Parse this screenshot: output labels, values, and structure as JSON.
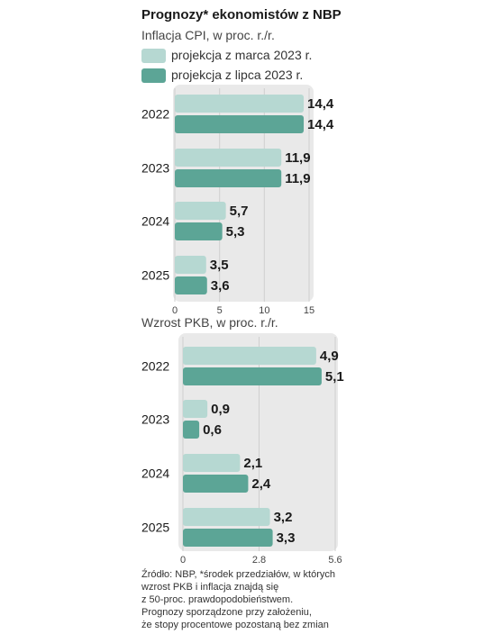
{
  "title": "Prognozy* ekonomistów z NBP",
  "legend": {
    "march": "projekcja z marca 2023 r.",
    "july": "projekcja z lipca 2023 r."
  },
  "colors": {
    "march": "#b6d8d2",
    "july": "#5ca596",
    "panel": "#e9e9e9",
    "grid": "#cfcfcf"
  },
  "source_lines": [
    "Źródło: NBP, *środek przedziałów, w których",
    "wzrost PKB i inflacja znajdą się",
    "z 50-proc. prawdopodobieństwem.",
    "Prognozy sporządzone przy założeniu,",
    "że stopy procentowe pozostaną bez zmian"
  ],
  "chart_data": [
    {
      "type": "bar",
      "title": "Inflacja CPI, w proc. r./r.",
      "categories": [
        "2022",
        "2023",
        "2024",
        "2025"
      ],
      "series": [
        {
          "name": "projekcja z marca 2023 r.",
          "values": [
            14.4,
            11.9,
            5.7,
            3.5
          ],
          "labels": [
            "14,4",
            "11,9",
            "5,7",
            "3,5"
          ]
        },
        {
          "name": "projekcja z lipca 2023 r.",
          "values": [
            14.4,
            11.9,
            5.3,
            3.6
          ],
          "labels": [
            "14,4",
            "11,9",
            "5,3",
            "3,6"
          ]
        }
      ],
      "xticks": [
        0,
        5,
        10,
        15
      ],
      "xtick_labels": [
        "0",
        "5",
        "10",
        "15"
      ],
      "xlim": [
        0,
        15
      ],
      "grid": true
    },
    {
      "type": "bar",
      "title": "Wzrost PKB, w proc. r./r.",
      "categories": [
        "2022",
        "2023",
        "2024",
        "2025"
      ],
      "series": [
        {
          "name": "projekcja z marca 2023 r.",
          "values": [
            4.9,
            0.9,
            2.1,
            3.2
          ],
          "labels": [
            "4,9",
            "0,9",
            "2,1",
            "3,2"
          ]
        },
        {
          "name": "projekcja z lipca 2023 r.",
          "values": [
            5.1,
            0.6,
            2.4,
            3.3
          ],
          "labels": [
            "5,1",
            "0,6",
            "2,4",
            "3,3"
          ]
        }
      ],
      "xticks": [
        0,
        2.8,
        5.6
      ],
      "xtick_labels": [
        "0",
        "2.8",
        "5.6"
      ],
      "xlim": [
        0,
        5.6
      ],
      "grid": true
    }
  ]
}
